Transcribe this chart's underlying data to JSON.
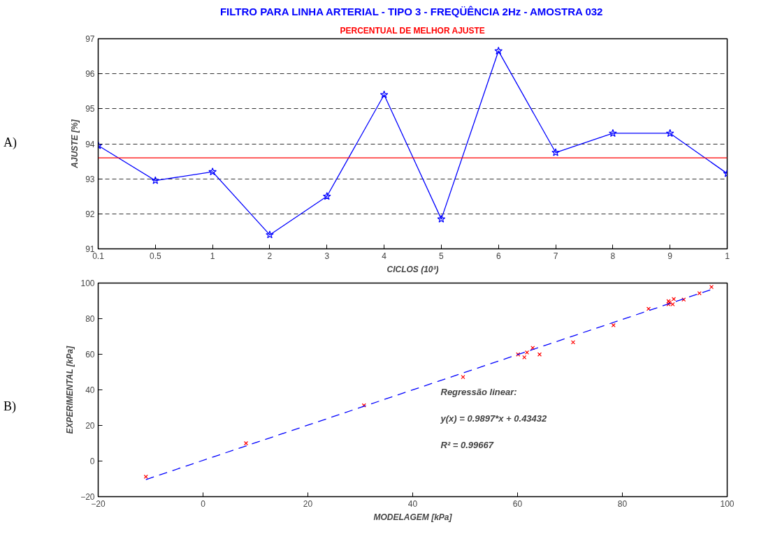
{
  "chart_data": [
    {
      "type": "line",
      "title": "FILTRO PARA LINHA ARTERIAL - TIPO 3 - FREQÜÊNCIA 2Hz - AMOSTRA 032",
      "subtitle": "PERCENTUAL DE MELHOR AJUSTE",
      "xlabel": "CICLOS (10³)",
      "ylabel": "AJUSTE [%]",
      "categories": [
        "0.1",
        "0.5",
        "1",
        "2",
        "3",
        "4",
        "5",
        "6",
        "7",
        "8",
        "9",
        "1"
      ],
      "series": [
        {
          "color": "#0000ff",
          "values": [
            93.95,
            92.95,
            93.2,
            91.4,
            92.5,
            95.4,
            91.85,
            96.65,
            93.75,
            94.3,
            94.3,
            93.15
          ]
        }
      ],
      "ylim": [
        91,
        97
      ],
      "yticks": [
        91,
        92,
        93,
        94,
        95,
        96,
        97
      ],
      "grid": "y",
      "marker": "star",
      "line_style": "solid",
      "ref_lines": [
        {
          "axis": "y",
          "value": 93.6,
          "color": "#ff0000",
          "line_style": "solid"
        }
      ],
      "annotations": [
        "A)"
      ]
    },
    {
      "type": "scatter",
      "xlabel": "MODELAGEM [kPa]",
      "ylabel": "EXPERIMENTAL [kPa]",
      "series": [
        {
          "type": "scatter",
          "color": "#ff0000",
          "marker": "cross",
          "x": [
            -10.9,
            8.2,
            30.7,
            49.6,
            60.1,
            61.3,
            61.8,
            62.9,
            64.2,
            70.6,
            78.3,
            85.0,
            88.8,
            88.8,
            89.0,
            89.6,
            89.8,
            91.7,
            94.7,
            97.0
          ],
          "values": [
            -8.8,
            10.0,
            31.3,
            47.2,
            59.9,
            58.3,
            61.0,
            63.6,
            59.9,
            66.7,
            76.3,
            85.5,
            89.8,
            88.1,
            89.1,
            88.1,
            91.0,
            90.7,
            94.3,
            97.8
          ]
        },
        {
          "type": "line",
          "color": "#0000ff",
          "line_style": "dashed",
          "x": [
            -10.9,
            97.0
          ],
          "values": [
            -10.4,
            96.4
          ]
        }
      ],
      "xlim": [
        -20,
        100
      ],
      "xticks": [
        -20,
        0,
        20,
        40,
        60,
        80,
        100
      ],
      "ylim": [
        -20,
        100
      ],
      "yticks": [
        -20,
        0,
        20,
        40,
        60,
        80,
        100
      ],
      "annotations": [
        "B)",
        "Regressão linear:",
        "y(x) = 0.9897*x + 0.43432",
        "R² = 0.99667"
      ]
    }
  ]
}
